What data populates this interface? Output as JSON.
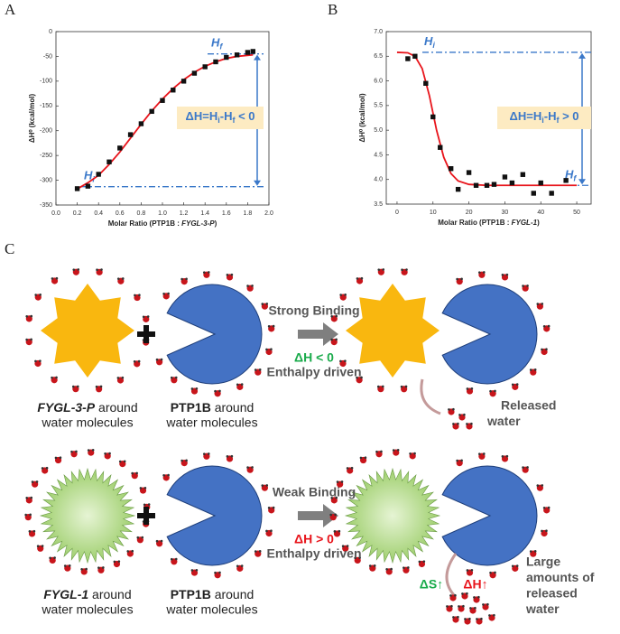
{
  "panel_labels": [
    "A",
    "B",
    "C"
  ],
  "chart_data": [
    {
      "type": "scatter",
      "y_label": "ΔH⁰ (kcal/mol)",
      "x_label": [
        "Molar Ratio (PTP1B : ",
        "FYGL-3-P",
        ")"
      ],
      "xlim": [
        0,
        2
      ],
      "ylim": [
        -350,
        0
      ],
      "xticks": [
        {
          "value": 0,
          "label": "0.0"
        },
        0.2,
        0.4,
        0.6,
        0.8,
        {
          "value": 1,
          "label": "1.0"
        },
        1.2,
        1.4,
        1.6,
        1.8,
        {
          "value": 2,
          "label": "2.0"
        }
      ],
      "yticks": [
        -350,
        -300,
        -250,
        -200,
        -150,
        -100,
        -50,
        0
      ],
      "series": [
        {
          "color": "#111111",
          "x": [
            0.2,
            0.3,
            0.4,
            0.5,
            0.6,
            0.7,
            0.8,
            0.9,
            1.0,
            1.1,
            1.2,
            1.3,
            1.4,
            1.5,
            1.6,
            1.7,
            1.8,
            1.85
          ],
          "values": [
            -317,
            -312,
            -288,
            -263,
            -235,
            -208,
            -186,
            -161,
            -139,
            -118,
            -100,
            -84,
            -71,
            -61,
            -52,
            -47,
            -42,
            -40
          ]
        }
      ],
      "fit": {
        "color": "#e8141b",
        "x": [
          0.18,
          0.3,
          0.4,
          0.5,
          0.6,
          0.7,
          0.8,
          0.9,
          1.0,
          1.1,
          1.2,
          1.3,
          1.4,
          1.5,
          1.6,
          1.7,
          1.85
        ],
        "values": [
          -320,
          -305,
          -290,
          -268,
          -243,
          -215,
          -187,
          -160,
          -136,
          -115,
          -97,
          -82,
          -70,
          -61,
          -54,
          -50,
          -47
        ]
      },
      "ref_lines": [
        -45,
        -313
      ],
      "ref_color": "#3a78c9",
      "upper_label": [
        "H",
        "f"
      ],
      "lower_label": [
        "H",
        "i"
      ],
      "equation": [
        "ΔH=H",
        "i",
        "-H",
        "f",
        " < 0"
      ]
    },
    {
      "type": "scatter",
      "y_label": "ΔH⁰ (kcal/mol)",
      "x_label": [
        "Molar Ratio (PTP1B : ",
        "FYGL-1",
        ")"
      ],
      "xlim": [
        -3,
        54
      ],
      "ylim": [
        3.5,
        7
      ],
      "xticks": [
        0,
        10,
        20,
        30,
        40,
        50
      ],
      "yticks": [
        3.5,
        {
          "value": 4,
          "label": "4.0"
        },
        4.5,
        {
          "value": 5,
          "label": "5.0"
        },
        5.5,
        {
          "value": 6,
          "label": "6.0"
        },
        6.5,
        {
          "value": 7,
          "label": "7.0"
        }
      ],
      "series": [
        {
          "color": "#111111",
          "x": [
            3,
            5,
            8,
            10,
            12,
            15,
            17,
            20,
            22,
            25,
            27,
            30,
            32,
            35,
            38,
            40,
            43,
            47
          ],
          "values": [
            6.45,
            6.5,
            5.95,
            5.27,
            4.65,
            4.22,
            3.8,
            4.14,
            3.88,
            3.88,
            3.9,
            4.05,
            3.93,
            4.1,
            3.72,
            3.93,
            3.72,
            3.98
          ]
        }
      ],
      "fit": {
        "color": "#e8141b",
        "x": [
          0,
          3,
          5,
          7,
          9,
          11,
          13,
          15,
          17,
          20,
          25,
          50
        ],
        "values": [
          6.58,
          6.57,
          6.5,
          6.25,
          5.7,
          5.0,
          4.45,
          4.12,
          3.97,
          3.9,
          3.88,
          3.88
        ]
      },
      "ref_lines": [
        6.58,
        3.88
      ],
      "ref_color": "#3a78c9",
      "upper_label": [
        "H",
        "i"
      ],
      "lower_label": [
        "H",
        "f"
      ],
      "equation": [
        "ΔH=H",
        "i",
        "-H",
        "f",
        " > 0"
      ]
    }
  ],
  "diagram": {
    "rows": [
      {
        "ligand_label": [
          "FYGL-3-P",
          " around"
        ],
        "ligand_label2": "water molecules",
        "protein_label": [
          "PTP1B",
          " around"
        ],
        "protein_label2": "water molecules",
        "binding": "Strong Binding",
        "delta_h": "ΔH < 0",
        "driver": "Enthalpy driven",
        "released": [
          "Released",
          "water"
        ]
      },
      {
        "ligand_label": [
          "FYGL-1",
          " around"
        ],
        "ligand_label2": "water molecules",
        "protein_label": [
          "PTP1B",
          " around"
        ],
        "protein_label2": "water molecules",
        "binding": "Weak Binding",
        "delta_h": "ΔH > 0",
        "driver": "Enthalpy driven",
        "entropy": "ΔS↑",
        "enthalpy": "ΔH↑",
        "released": [
          "Large",
          "amounts of",
          "released",
          "water"
        ]
      }
    ]
  }
}
